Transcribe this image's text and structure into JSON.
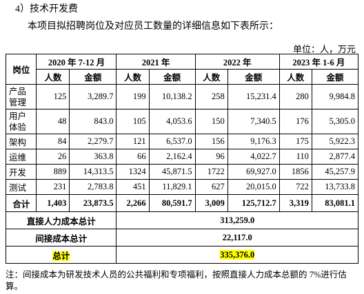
{
  "heading": "4）技术开发费",
  "intro": "本项目拟招聘岗位及对应员工数量的详细信息如下表所示：",
  "unit": "单位：人，万元",
  "table": {
    "corner": "岗位",
    "periods": [
      "2020 年 7-12 月",
      "2021 年",
      "2022 年",
      "2023 年 1-6 月"
    ],
    "subheaders": [
      "人数",
      "金额",
      "人数",
      "金额",
      "人数",
      "金额",
      "人数",
      "金额"
    ],
    "rows": [
      [
        "产品管理",
        "125",
        "3,289.7",
        "199",
        "10,138.2",
        "258",
        "15,231.4",
        "280",
        "9,984.8"
      ],
      [
        "用户体验",
        "48",
        "843.0",
        "105",
        "4,053.6",
        "150",
        "7,340.5",
        "176",
        "5,305.0"
      ],
      [
        "架构",
        "84",
        "2,279.7",
        "121",
        "6,537.0",
        "156",
        "9,176.3",
        "175",
        "5,922.3"
      ],
      [
        "运维",
        "26",
        "363.8",
        "66",
        "2,162.4",
        "96",
        "4,022.7",
        "110",
        "2,877.4"
      ],
      [
        "开发",
        "889",
        "14,313.5",
        "1324",
        "45,871.5",
        "1722",
        "69,927.0",
        "1856",
        "45,257.9"
      ],
      [
        "测试",
        "231",
        "2,783.8",
        "451",
        "11,829.1",
        "627",
        "20,015.0",
        "722",
        "13,733.8"
      ],
      [
        "合计",
        "1,403",
        "23,873.5",
        "2,266",
        "80,591.7",
        "3,009",
        "125,712.7",
        "3,319",
        "83,081.1"
      ]
    ],
    "summary": [
      [
        "直接人力成本总计",
        "313,259.0"
      ],
      [
        "间接成本总计",
        "22,117.0"
      ],
      [
        "总计",
        "335,376.0"
      ]
    ]
  },
  "note": "注：间接成本为研发技术人员的公共福利和专项福利，按照直接人力成本总额的 7%进行估算。"
}
